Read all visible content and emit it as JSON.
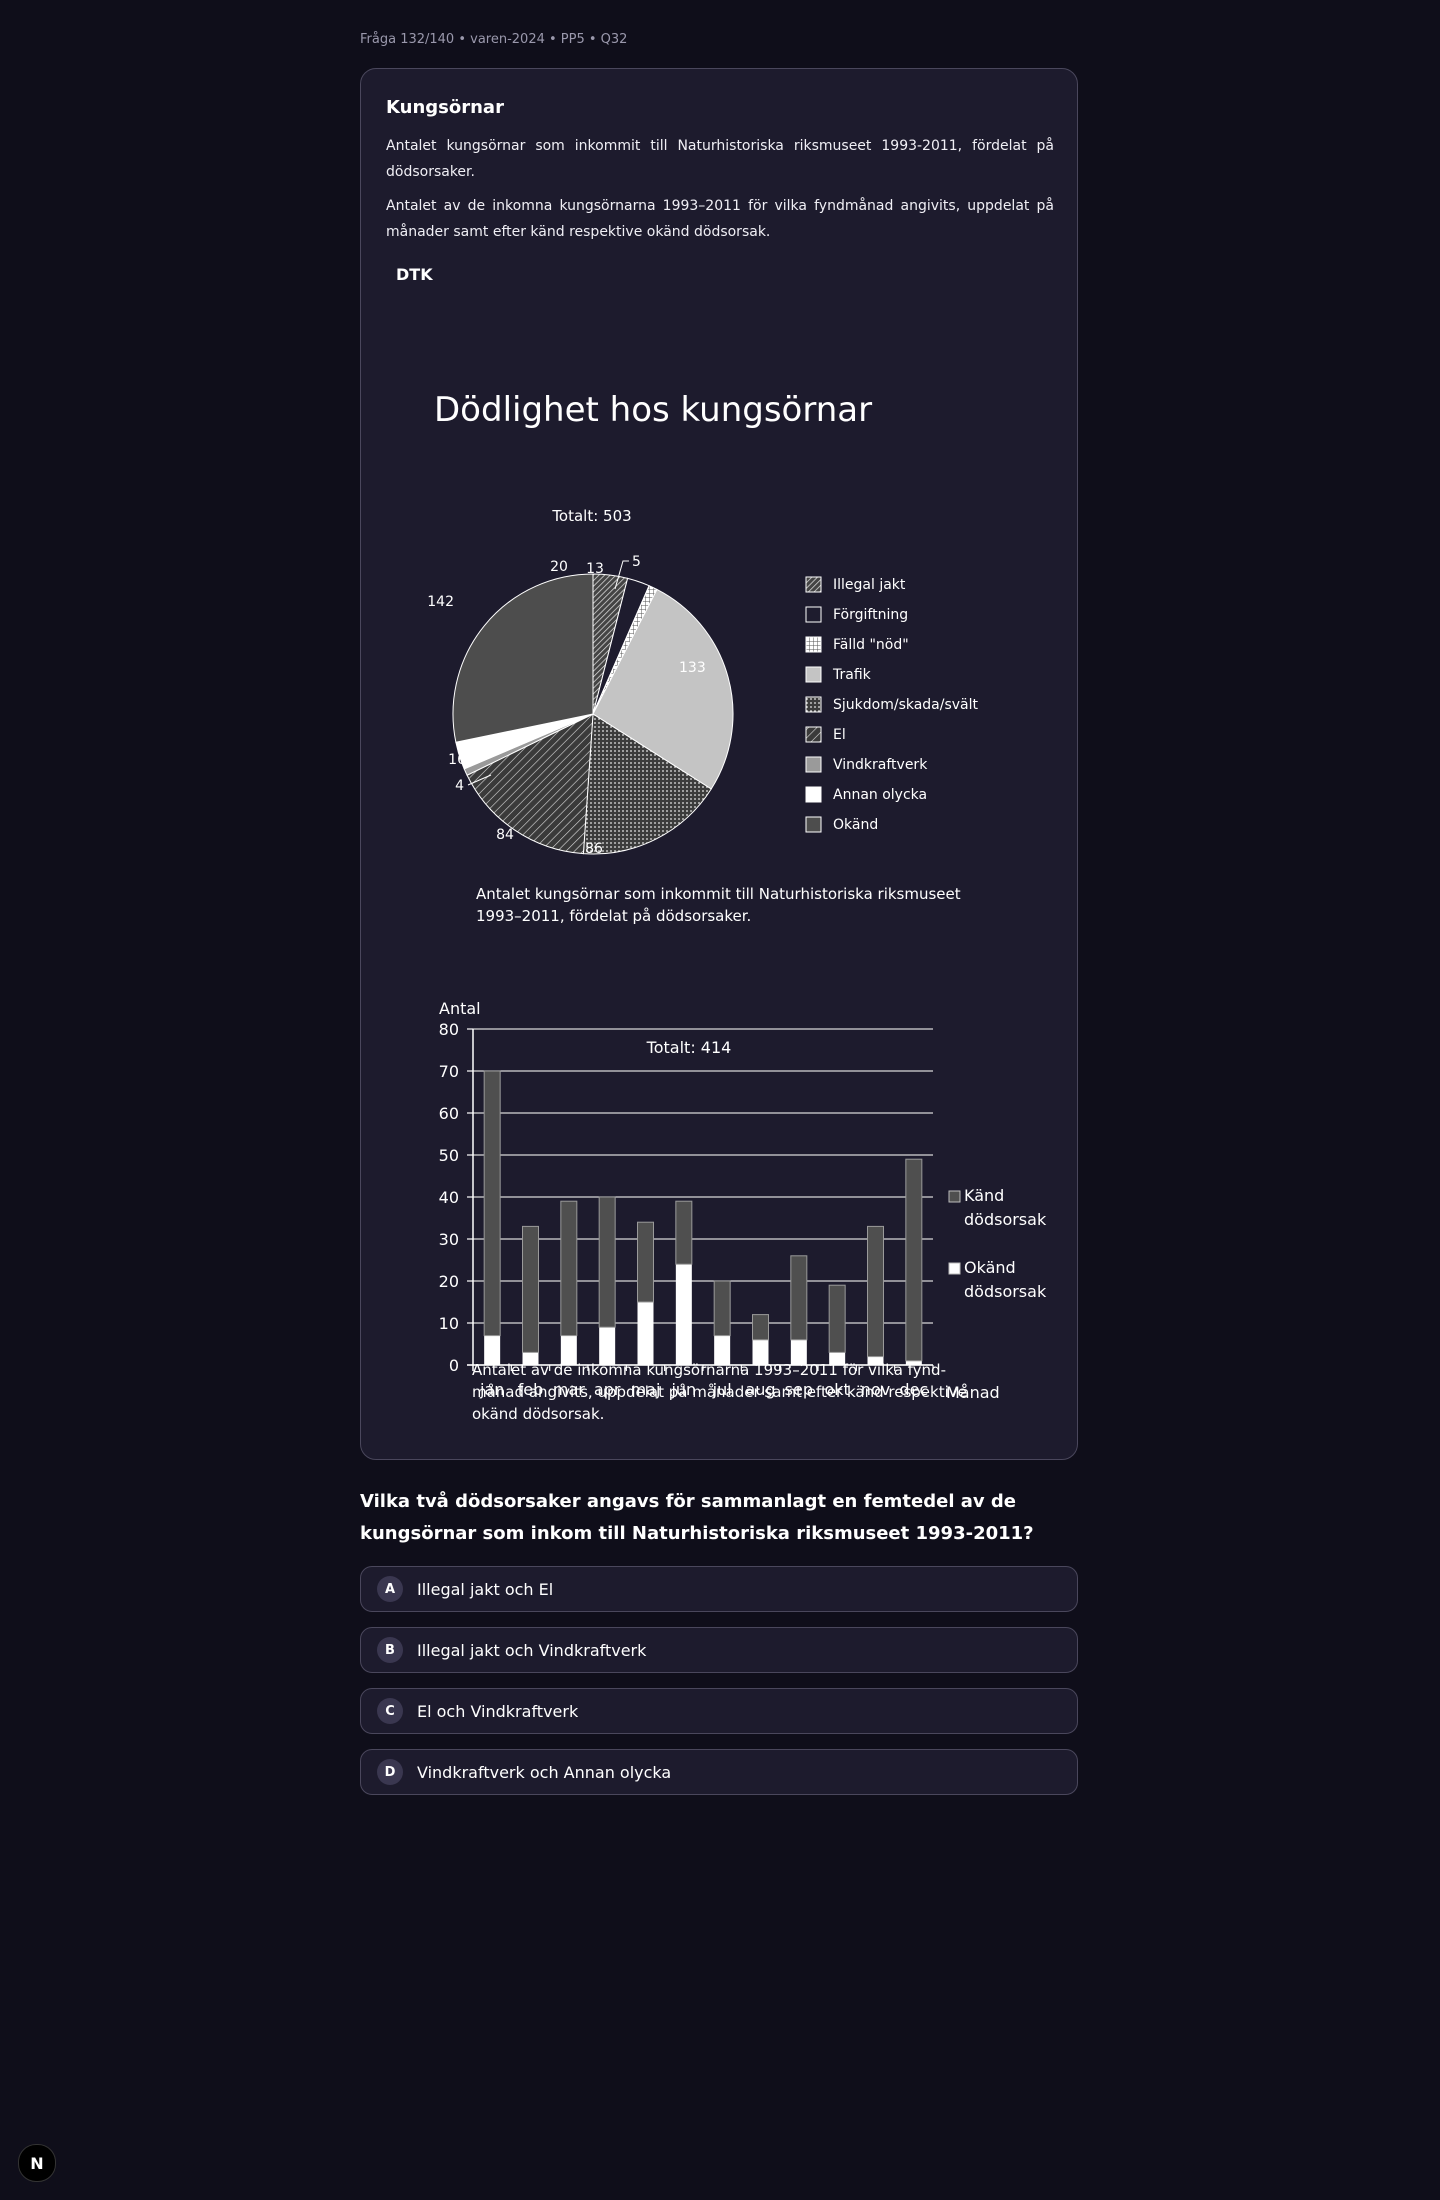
{
  "breadcrumb": "Fråga 132/140 • varen-2024 • PP5 • Q32",
  "card": {
    "title": "Kungsörnar",
    "para1": "Antalet kungsörnar som inkommit till Naturhistoriska riksmuseet 1993-2011, fördelat på dödsorsaker.",
    "para2": "Antalet av de inkomna kungsörnarna 1993–2011 för vilka fyndmånad angivits, uppdelat på månader samt efter känd respektive okänd dödsorsak.",
    "dtk": "DTK"
  },
  "figure_title": "Dödlighet hos kungsörnar",
  "chart_data": [
    {
      "type": "pie",
      "title": "Totalt: 503",
      "categories": [
        "Illegal jakt",
        "Förgiftning",
        "Fälld \"nöd\"",
        "Trafik",
        "Sjukdom/skada/svält",
        "El",
        "Vindkraftverk",
        "Annan olycka",
        "Okänd"
      ],
      "values": [
        20,
        13,
        5,
        133,
        86,
        84,
        4,
        16,
        142
      ],
      "value_labels": [
        "20",
        "13",
        "5",
        "133",
        "86",
        "84",
        "4",
        "16",
        "142"
      ],
      "caption_line1": "Antalet kungsörnar som inkommit till Naturhistoriska riksmuseet",
      "caption_line2": "1993–2011, fördelat på dödsorsaker."
    },
    {
      "type": "bar",
      "stacked": true,
      "title": "Totalt: 414",
      "ylabel": "Antal",
      "xlabel": "Månad",
      "ylim": [
        0,
        80
      ],
      "yticks": [
        "0",
        "10",
        "20",
        "30",
        "40",
        "50",
        "60",
        "70",
        "80"
      ],
      "categories": [
        "jan",
        "feb",
        "mar",
        "apr",
        "maj",
        "jun",
        "jul",
        "aug",
        "sep",
        "okt",
        "nov",
        "dec"
      ],
      "series": [
        {
          "name": "Okänd dödsorsak",
          "values": [
            7,
            3,
            7,
            9,
            15,
            24,
            7,
            6,
            6,
            3,
            2,
            1
          ]
        },
        {
          "name": "Känd dödsorsak",
          "values": [
            63,
            30,
            32,
            31,
            19,
            15,
            13,
            6,
            20,
            16,
            31,
            48
          ]
        }
      ],
      "legend": [
        {
          "line1": "Känd",
          "line2": "dödsorsak"
        },
        {
          "line1": "Okänd",
          "line2": "dödsorsak"
        }
      ],
      "caption_line1": "Antalet av de inkomna kungsörnarna 1993–2011 för vilka fynd-",
      "caption_line2": "månad angivits, uppdelat på månader samt efter känd respektive",
      "caption_line3": "okänd dödsorsak."
    }
  ],
  "question": "Vilka två dödsorsaker angavs för sammanlagt en femtedel av de kungsörnar som inkom till Naturhistoriska riksmuseet 1993-2011?",
  "options": [
    {
      "letter": "A",
      "text": "Illegal jakt och El"
    },
    {
      "letter": "B",
      "text": "Illegal jakt och Vindkraftverk"
    },
    {
      "letter": "C",
      "text": "El och Vindkraftverk"
    },
    {
      "letter": "D",
      "text": "Vindkraftverk och Annan olycka"
    }
  ],
  "corner_logo": "N"
}
